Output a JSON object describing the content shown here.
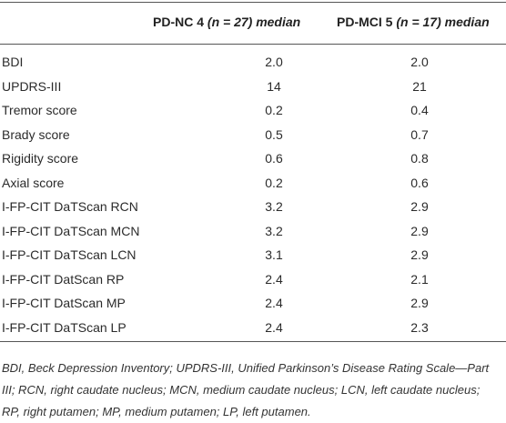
{
  "table": {
    "header": [
      {
        "main": "PD-NC 4 ",
        "sub": "(n = 27) median"
      },
      {
        "main": "PD-MCI 5 ",
        "sub": "(n = 17) median"
      }
    ],
    "rows": [
      [
        "BDI",
        "2.0",
        "2.0"
      ],
      [
        "UPDRS-III",
        "14",
        "21"
      ],
      [
        "Tremor score",
        "0.2",
        "0.4"
      ],
      [
        "Brady score",
        "0.5",
        "0.7"
      ],
      [
        "Rigidity score",
        "0.6",
        "0.8"
      ],
      [
        "Axial score",
        "0.2",
        "0.6"
      ],
      [
        "I-FP-CIT DaTScan RCN",
        "3.2",
        "2.9"
      ],
      [
        "I-FP-CIT DaTScan MCN",
        "3.2",
        "2.9"
      ],
      [
        "I-FP-CIT DaTScan LCN",
        "3.1",
        "2.9"
      ],
      [
        "I-FP-CIT DatScan RP",
        "2.4",
        "2.1"
      ],
      [
        "I-FP-CIT DatScan MP",
        "2.4",
        "2.9"
      ],
      [
        "I-FP-CIT DaTScan LP",
        "2.4",
        "2.3"
      ]
    ],
    "footnote": "BDI, Beck Depression Inventory; UPDRS-III, Unified Parkinson’s Disease Rating Scale—Part III; RCN, right caudate nucleus; MCN, medium caudate nucleus; LCN, left caudate nucleus; RP, right putamen; MP, medium putamen; LP, left putamen."
  }
}
